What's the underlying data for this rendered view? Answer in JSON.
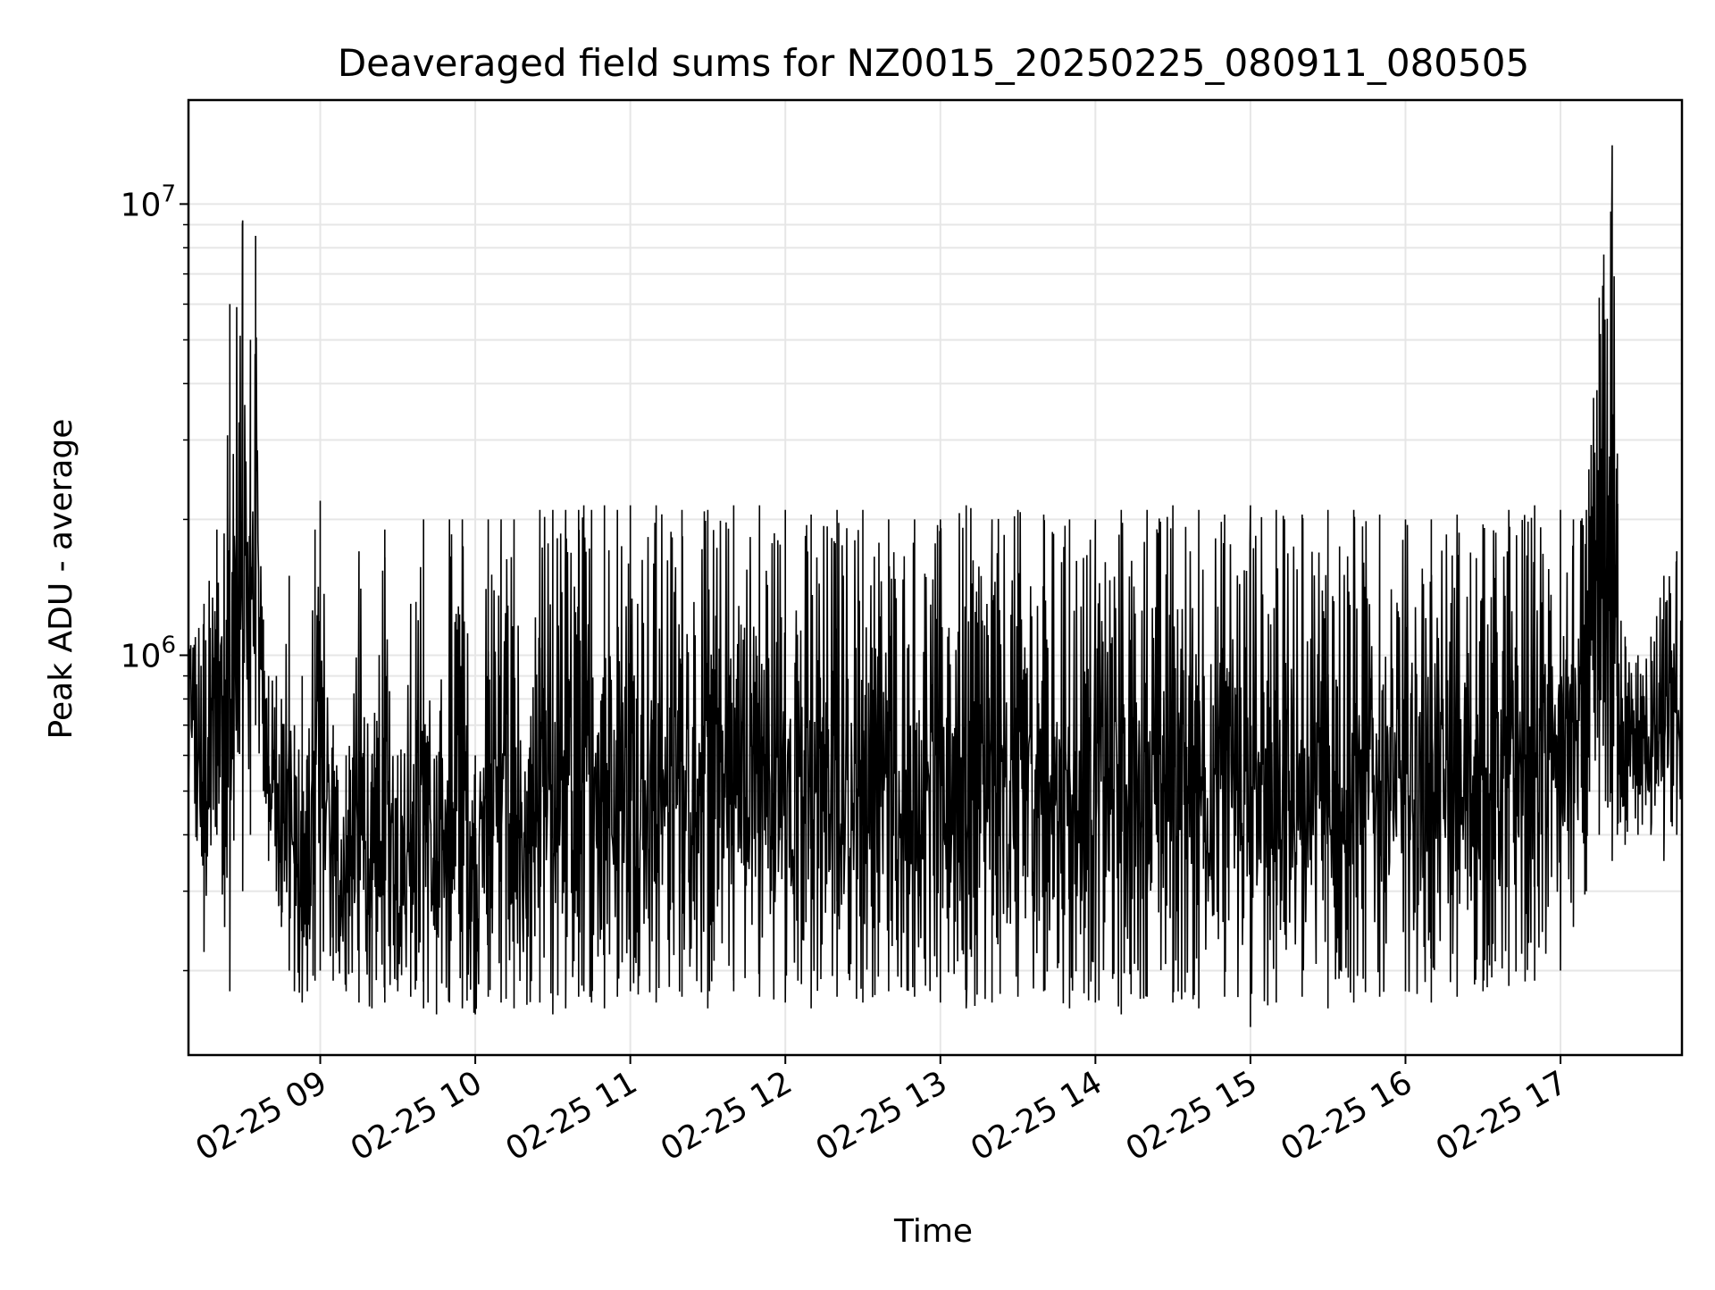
{
  "chart_data": {
    "type": "line",
    "title": "Deaveraged field sums for NZ0015_20250225_080911_080505",
    "xlabel": "Time",
    "ylabel": "Peak ADU - average",
    "x_scale": "time",
    "y_scale": "log",
    "xlim": [
      "2025-02-25 08:09",
      "2025-02-25 17:47"
    ],
    "ylim": [
      130000,
      17000000
    ],
    "x_ticks": [
      "02-25 09",
      "02-25 10",
      "02-25 11",
      "02-25 12",
      "02-25 13",
      "02-25 14",
      "02-25 15",
      "02-25 16",
      "02-25 17"
    ],
    "y_ticks": [
      {
        "base": "10",
        "exp": "6",
        "value": 1000000
      },
      {
        "base": "10",
        "exp": "7",
        "value": 10000000
      }
    ],
    "grid": true,
    "line_color": "#000000",
    "grid_color": "#e6e6e6",
    "series": [
      {
        "x": [
          "08:09",
          "08:15",
          "08:20",
          "08:25",
          "08:30",
          "08:33",
          "08:35",
          "08:38",
          "08:40",
          "08:43",
          "08:45",
          "08:48",
          "08:50",
          "08:53",
          "08:55",
          "08:58",
          "09:00",
          "09:05",
          "09:10",
          "09:15",
          "09:20",
          "09:25",
          "09:30",
          "09:35",
          "09:40",
          "09:45",
          "09:50",
          "09:55",
          "10:00",
          "10:05",
          "10:10",
          "10:15",
          "10:20",
          "10:25",
          "10:30",
          "10:35",
          "10:40",
          "10:42",
          "10:45",
          "10:50",
          "10:55",
          "11:00",
          "11:10",
          "11:20",
          "11:30",
          "11:40",
          "11:50",
          "12:00",
          "12:10",
          "12:20",
          "12:30",
          "12:40",
          "12:50",
          "13:00",
          "13:10",
          "13:20",
          "13:30",
          "13:40",
          "13:50",
          "14:00",
          "14:10",
          "14:20",
          "14:30",
          "14:40",
          "14:50",
          "15:00",
          "15:10",
          "15:20",
          "15:30",
          "15:40",
          "15:50",
          "16:00",
          "16:10",
          "16:20",
          "16:30",
          "16:40",
          "16:50",
          "17:00",
          "17:05",
          "17:10",
          "17:15",
          "17:20",
          "17:22",
          "17:25",
          "17:30",
          "17:35",
          "17:40",
          "17:45",
          "17:47"
        ],
        "high": [
          1400000,
          1300000,
          1900000,
          6000000,
          9200000,
          5000000,
          8500000,
          1200000,
          900000,
          900000,
          800000,
          1500000,
          700000,
          900000,
          600000,
          1900000,
          2200000,
          700000,
          600000,
          1700000,
          600000,
          1900000,
          600000,
          1300000,
          2000000,
          600000,
          2000000,
          2000000,
          600000,
          2000000,
          2000000,
          2000000,
          500000,
          2100000,
          2100000,
          2100000,
          2100000,
          2150000,
          2100000,
          2150000,
          2100000,
          2150000,
          2150000,
          2100000,
          2100000,
          2150000,
          2150000,
          2100000,
          2050000,
          2100000,
          2100000,
          2000000,
          2000000,
          2000000,
          2150000,
          2000000,
          2100000,
          2050000,
          2000000,
          2000000,
          2100000,
          2100000,
          2150000,
          2100000,
          2050000,
          2150000,
          2100000,
          2050000,
          2100000,
          2100000,
          2050000,
          2000000,
          2000000,
          2050000,
          1950000,
          2100000,
          2150000,
          2100000,
          2000000,
          2100000,
          6200000,
          13500000,
          2800000,
          1100000,
          1000000,
          1100000,
          1500000,
          1700000,
          1600000
        ],
        "low": [
          500000,
          220000,
          400000,
          180000,
          300000,
          400000,
          700000,
          500000,
          350000,
          300000,
          250000,
          200000,
          180000,
          170000,
          180000,
          190000,
          200000,
          190000,
          180000,
          170000,
          165000,
          170000,
          180000,
          175000,
          165000,
          160000,
          170000,
          165000,
          160000,
          175000,
          170000,
          165000,
          168000,
          170000,
          160000,
          165000,
          175000,
          180000,
          170000,
          165000,
          175000,
          180000,
          170000,
          175000,
          165000,
          180000,
          175000,
          170000,
          165000,
          175000,
          170000,
          180000,
          175000,
          170000,
          165000,
          170000,
          175000,
          180000,
          165000,
          170000,
          160000,
          175000,
          170000,
          165000,
          175000,
          150000,
          170000,
          175000,
          165000,
          170000,
          175000,
          180000,
          170000,
          175000,
          180000,
          185000,
          190000,
          200000,
          250000,
          300000,
          400000,
          350000,
          400000,
          380000,
          400000,
          400000,
          350000,
          400000,
          450000
        ]
      }
    ]
  }
}
